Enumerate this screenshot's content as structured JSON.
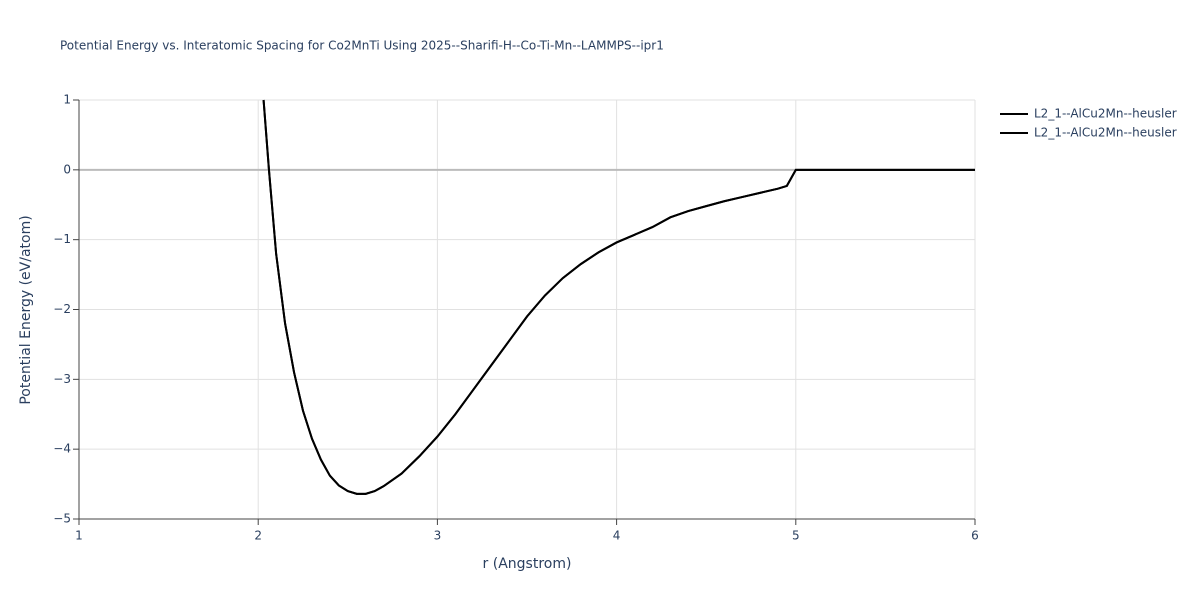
{
  "chart_data": {
    "type": "line",
    "title": "Potential Energy vs. Interatomic Spacing for Co2MnTi Using 2025--Sharifi-H--Co-Ti-Mn--LAMMPS--ipr1",
    "x_label": "r (Angstrom)",
    "y_label": "Potential Energy (eV/atom)",
    "x": [
      2.03,
      2.06,
      2.1,
      2.15,
      2.2,
      2.25,
      2.3,
      2.35,
      2.4,
      2.45,
      2.5,
      2.55,
      2.6,
      2.65,
      2.7,
      2.8,
      2.9,
      3.0,
      3.1,
      3.2,
      3.3,
      3.4,
      3.5,
      3.6,
      3.7,
      3.8,
      3.9,
      4.0,
      4.1,
      4.2,
      4.3,
      4.4,
      4.5,
      4.6,
      4.7,
      4.8,
      4.9,
      4.95,
      5.0,
      5.5,
      6.0
    ],
    "series": [
      {
        "name": "L2_1--AlCu2Mn--heusler",
        "color": "#000000",
        "values": [
          1.0,
          0.0,
          -1.2,
          -2.2,
          -2.9,
          -3.45,
          -3.85,
          -4.15,
          -4.38,
          -4.52,
          -4.6,
          -4.64,
          -4.64,
          -4.6,
          -4.53,
          -4.35,
          -4.1,
          -3.82,
          -3.5,
          -3.15,
          -2.8,
          -2.45,
          -2.1,
          -1.8,
          -1.55,
          -1.35,
          -1.18,
          -1.04,
          -0.93,
          -0.82,
          -0.68,
          -0.59,
          -0.52,
          -0.45,
          -0.39,
          -0.33,
          -0.27,
          -0.23,
          0,
          0,
          0
        ]
      },
      {
        "name": "L2_1--AlCu2Mn--heusler",
        "color": "#000000",
        "values": [
          1.0,
          0.0,
          -1.2,
          -2.2,
          -2.9,
          -3.45,
          -3.85,
          -4.15,
          -4.38,
          -4.52,
          -4.6,
          -4.64,
          -4.64,
          -4.6,
          -4.53,
          -4.35,
          -4.1,
          -3.82,
          -3.5,
          -3.15,
          -2.8,
          -2.45,
          -2.1,
          -1.8,
          -1.55,
          -1.35,
          -1.18,
          -1.04,
          -0.93,
          -0.82,
          -0.68,
          -0.59,
          -0.52,
          -0.45,
          -0.39,
          -0.33,
          -0.27,
          -0.23,
          0,
          0,
          0
        ]
      }
    ],
    "xlim": [
      1,
      6
    ],
    "xticks": [
      1,
      2,
      3,
      4,
      5,
      6
    ],
    "ylim": [
      -5,
      1
    ],
    "yticks": [
      {
        "value": -5,
        "label": "−5"
      },
      {
        "value": -4,
        "label": "−4"
      },
      {
        "value": -3,
        "label": "−3"
      },
      {
        "value": -2,
        "label": "−2"
      },
      {
        "value": -1,
        "label": "−1"
      },
      0,
      1
    ],
    "grid": true,
    "legend": "right"
  }
}
